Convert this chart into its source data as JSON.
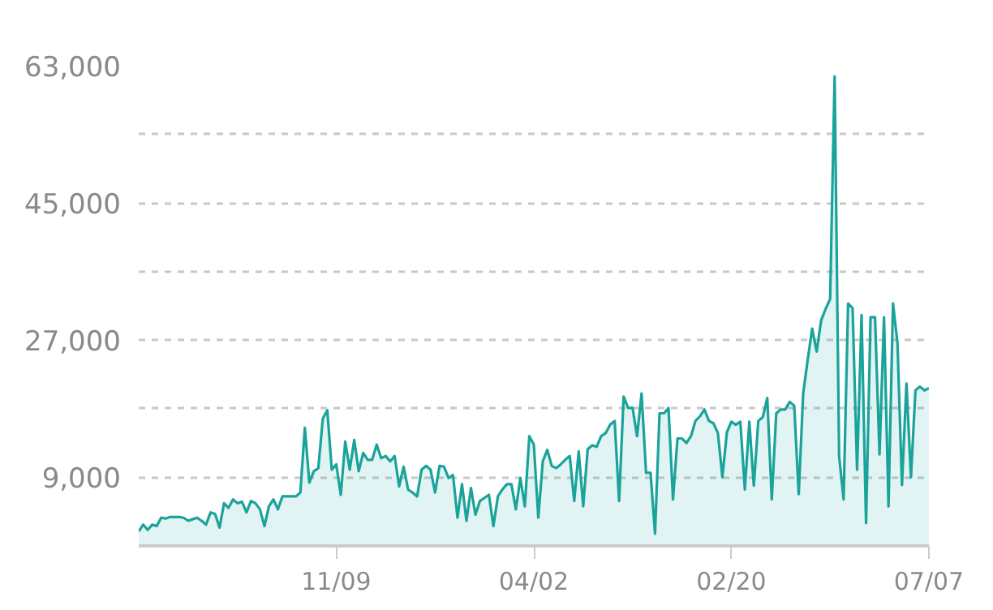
{
  "chart_data": {
    "type": "area",
    "color": "#1aa39a",
    "categories": [
      null,
      null,
      null,
      null,
      null,
      null,
      null,
      null,
      null,
      null,
      null,
      null,
      null,
      null,
      null,
      null,
      null,
      null,
      null,
      null,
      null,
      null,
      null,
      null,
      null,
      null,
      null,
      null,
      null,
      null,
      null,
      null,
      null,
      null,
      null,
      null,
      null,
      null,
      null,
      null,
      null,
      null,
      null,
      null,
      "11/09",
      null,
      null,
      null,
      null,
      null,
      null,
      null,
      null,
      null,
      null,
      null,
      null,
      null,
      null,
      null,
      null,
      null,
      null,
      null,
      null,
      null,
      null,
      null,
      null,
      null,
      null,
      null,
      null,
      null,
      null,
      null,
      null,
      null,
      null,
      null,
      null,
      null,
      null,
      null,
      null,
      null,
      null,
      null,
      "04/02",
      null,
      null,
      null,
      null,
      null,
      null,
      null,
      null,
      null,
      null,
      null,
      null,
      null,
      null,
      null,
      null,
      null,
      null,
      null,
      null,
      null,
      null,
      null,
      null,
      null,
      null,
      null,
      null,
      null,
      null,
      null,
      null,
      null,
      null,
      null,
      null,
      null,
      null,
      null,
      null,
      null,
      null,
      null,
      "02/20",
      null,
      null,
      null,
      null,
      null,
      null,
      null,
      null,
      null,
      null,
      null,
      null,
      null,
      null,
      null,
      null,
      null,
      null,
      null,
      null,
      null,
      null,
      null,
      null,
      null,
      null,
      null,
      null,
      null,
      null,
      null,
      null,
      null,
      null,
      null,
      null,
      null,
      null,
      null,
      null,
      null,
      null,
      null,
      "07/07"
    ],
    "values": [
      1900,
      2800,
      2100,
      2800,
      2600,
      3700,
      3600,
      3800,
      3800,
      3800,
      3700,
      3300,
      3500,
      3700,
      3300,
      2800,
      4400,
      4200,
      2400,
      5600,
      5000,
      6100,
      5600,
      5800,
      4400,
      5900,
      5600,
      4800,
      2600,
      5200,
      6100,
      4800,
      6500,
      6500,
      6500,
      6500,
      7000,
      15500,
      8300,
      9800,
      10200,
      16700,
      17800,
      10000,
      10700,
      6700,
      13700,
      10000,
      13900,
      9800,
      12200,
      11300,
      11300,
      13300,
      11500,
      11800,
      11100,
      11800,
      7800,
      10400,
      7400,
      7000,
      6500,
      10000,
      10500,
      10000,
      7000,
      10500,
      10400,
      8900,
      9300,
      3700,
      8100,
      3300,
      7600,
      4100,
      5900,
      6300,
      6700,
      2600,
      6500,
      7400,
      8100,
      8100,
      4800,
      8900,
      5200,
      14400,
      13300,
      3700,
      11100,
      12600,
      10500,
      10200,
      10700,
      11300,
      11800,
      5900,
      12400,
      5200,
      12700,
      13200,
      13000,
      14400,
      14800,
      15900,
      16400,
      5900,
      19600,
      18100,
      18100,
      14400,
      20000,
      9600,
      9600,
      1600,
      17400,
      17400,
      18100,
      6100,
      14100,
      14100,
      13500,
      14400,
      16400,
      17000,
      17900,
      16400,
      16100,
      14800,
      9000,
      14900,
      16300,
      15900,
      16300,
      7400,
      16300,
      7900,
      16400,
      16900,
      19400,
      6100,
      17400,
      17900,
      17900,
      18900,
      18400,
      6800,
      20000,
      24400,
      28500,
      25500,
      29600,
      31100,
      32400,
      61600,
      11800,
      6100,
      31800,
      31200,
      10000,
      30300,
      3000,
      30000,
      30000,
      12000,
      30000,
      5200,
      31800,
      26600,
      8000,
      21300,
      9000,
      20400,
      20900,
      20400,
      20700
    ],
    "ylim": [
      0,
      63000
    ],
    "yticks": [
      {
        "value": 9000,
        "label": "9,000"
      },
      {
        "value": 18000,
        "label": null
      },
      {
        "value": 27000,
        "label": "27,000"
      },
      {
        "value": 36000,
        "label": null
      },
      {
        "value": 45000,
        "label": "45,000"
      },
      {
        "value": 54000,
        "label": null
      },
      {
        "value": 63000,
        "label": "63,000"
      }
    ],
    "grid": "y"
  }
}
